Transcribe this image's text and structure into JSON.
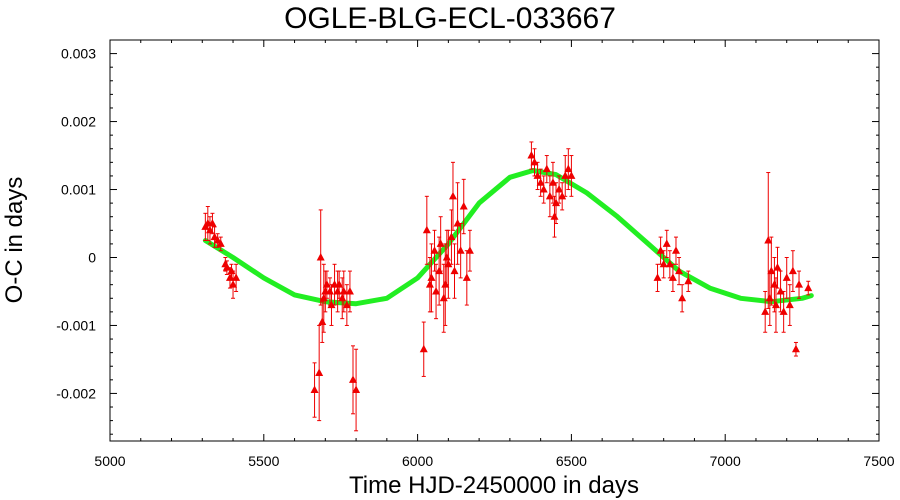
{
  "chart_data": {
    "type": "scatter",
    "title": "OGLE-BLG-ECL-033667",
    "xlabel": "Time HJD-2450000 in days",
    "ylabel": "O-C in days",
    "xlim": [
      5000,
      7500
    ],
    "ylim": [
      -0.0027,
      0.0032
    ],
    "xticks": [
      5000,
      5500,
      6000,
      6500,
      7000,
      7500
    ],
    "xtick_labels": [
      "5000",
      "5500",
      "6000",
      "6500",
      "7000",
      "7500"
    ],
    "yticks": [
      -0.002,
      -0.001,
      0,
      0.001,
      0.002,
      0.003
    ],
    "ytick_labels": [
      "-0.002",
      "-0.001",
      "0",
      "0.001",
      "0.002",
      "0.003"
    ],
    "grid": false,
    "colors": {
      "points": "#ee0000",
      "fit": "#22ee22",
      "axes": "#000000"
    },
    "series": [
      {
        "kind": "points_with_errorbars",
        "points": [
          {
            "x": 5310,
            "y": 0.00045,
            "err": 0.0002
          },
          {
            "x": 5318,
            "y": 0.0005,
            "err": 0.00025
          },
          {
            "x": 5325,
            "y": 0.0004,
            "err": 0.0002
          },
          {
            "x": 5333,
            "y": 0.0005,
            "err": 0.00015
          },
          {
            "x": 5340,
            "y": 0.0003,
            "err": 0.00015
          },
          {
            "x": 5350,
            "y": 0.00025,
            "err": 0.0001
          },
          {
            "x": 5360,
            "y": 0.0002,
            "err": 0.0001
          },
          {
            "x": 5375,
            "y": -0.0001,
            "err": 0.0001
          },
          {
            "x": 5380,
            "y": -0.00015,
            "err": 0.0001
          },
          {
            "x": 5390,
            "y": -0.0003,
            "err": 0.00015
          },
          {
            "x": 5395,
            "y": -0.0002,
            "err": 0.0001
          },
          {
            "x": 5400,
            "y": -0.0004,
            "err": 0.0002
          },
          {
            "x": 5410,
            "y": -0.0003,
            "err": 0.0002
          },
          {
            "x": 5665,
            "y": -0.00195,
            "err": 0.0004
          },
          {
            "x": 5680,
            "y": -0.0017,
            "err": 0.0007
          },
          {
            "x": 5685,
            "y": 0.0,
            "err": 0.0007
          },
          {
            "x": 5690,
            "y": -0.00095,
            "err": 0.0003
          },
          {
            "x": 5695,
            "y": -0.0006,
            "err": 0.0005
          },
          {
            "x": 5700,
            "y": -0.0005,
            "err": 0.0003
          },
          {
            "x": 5705,
            "y": -0.0004,
            "err": 0.0002
          },
          {
            "x": 5715,
            "y": -0.0005,
            "err": 0.0002
          },
          {
            "x": 5720,
            "y": -0.0007,
            "err": 0.0003
          },
          {
            "x": 5730,
            "y": -0.0004,
            "err": 0.0003
          },
          {
            "x": 5740,
            "y": -0.0005,
            "err": 0.0003
          },
          {
            "x": 5745,
            "y": -0.0004,
            "err": 0.0002
          },
          {
            "x": 5755,
            "y": -0.0006,
            "err": 0.0003
          },
          {
            "x": 5760,
            "y": -0.0005,
            "err": 0.0003
          },
          {
            "x": 5770,
            "y": -0.0007,
            "err": 0.0003
          },
          {
            "x": 5780,
            "y": -0.0005,
            "err": 0.0003
          },
          {
            "x": 5790,
            "y": -0.0018,
            "err": 0.0005
          },
          {
            "x": 5800,
            "y": -0.00195,
            "err": 0.0006
          },
          {
            "x": 6020,
            "y": -0.00135,
            "err": 0.0004
          },
          {
            "x": 6030,
            "y": 0.0004,
            "err": 0.0005
          },
          {
            "x": 6040,
            "y": -0.0004,
            "err": 0.0004
          },
          {
            "x": 6045,
            "y": -0.0003,
            "err": 0.0005
          },
          {
            "x": 6055,
            "y": 0.0001,
            "err": 0.0003
          },
          {
            "x": 6060,
            "y": -0.0005,
            "err": 0.0004
          },
          {
            "x": 6070,
            "y": -0.0002,
            "err": 0.0005
          },
          {
            "x": 6075,
            "y": 0.0002,
            "err": 0.0004
          },
          {
            "x": 6085,
            "y": -0.0006,
            "err": 0.0005
          },
          {
            "x": 6090,
            "y": -0.0004,
            "err": 0.0006
          },
          {
            "x": 6095,
            "y": 0.0,
            "err": 0.0004
          },
          {
            "x": 6100,
            "y": -0.0001,
            "err": 0.0005
          },
          {
            "x": 6110,
            "y": 0.0003,
            "err": 0.0004
          },
          {
            "x": 6115,
            "y": 0.0009,
            "err": 0.0005
          },
          {
            "x": 6120,
            "y": -0.0002,
            "err": 0.0004
          },
          {
            "x": 6130,
            "y": 0.0005,
            "err": 0.0006
          },
          {
            "x": 6140,
            "y": 0.0001,
            "err": 0.0004
          },
          {
            "x": 6150,
            "y": 0.00075,
            "err": 0.0004
          },
          {
            "x": 6160,
            "y": -0.0003,
            "err": 0.0004
          },
          {
            "x": 6170,
            "y": 0.0001,
            "err": 0.0003
          },
          {
            "x": 6370,
            "y": 0.0015,
            "err": 0.0002
          },
          {
            "x": 6380,
            "y": 0.0014,
            "err": 0.0002
          },
          {
            "x": 6390,
            "y": 0.0012,
            "err": 0.0002
          },
          {
            "x": 6400,
            "y": 0.0011,
            "err": 0.0002
          },
          {
            "x": 6410,
            "y": 0.001,
            "err": 0.0002
          },
          {
            "x": 6420,
            "y": 0.0013,
            "err": 0.0002
          },
          {
            "x": 6430,
            "y": 0.0009,
            "err": 0.0003
          },
          {
            "x": 6440,
            "y": 0.0011,
            "err": 0.0003
          },
          {
            "x": 6445,
            "y": 0.0006,
            "err": 0.0003
          },
          {
            "x": 6450,
            "y": 0.0008,
            "err": 0.0003
          },
          {
            "x": 6460,
            "y": 0.001,
            "err": 0.0002
          },
          {
            "x": 6470,
            "y": 0.0009,
            "err": 0.0002
          },
          {
            "x": 6480,
            "y": 0.0012,
            "err": 0.0003
          },
          {
            "x": 6490,
            "y": 0.0013,
            "err": 0.0003
          },
          {
            "x": 6500,
            "y": 0.0012,
            "err": 0.0003
          },
          {
            "x": 6780,
            "y": -0.0003,
            "err": 0.0002
          },
          {
            "x": 6790,
            "y": 0.0001,
            "err": 0.0002
          },
          {
            "x": 6800,
            "y": -0.0001,
            "err": 0.0002
          },
          {
            "x": 6810,
            "y": 0.0002,
            "err": 0.0002
          },
          {
            "x": 6820,
            "y": -0.0001,
            "err": 0.0002
          },
          {
            "x": 6830,
            "y": -0.0003,
            "err": 0.0002
          },
          {
            "x": 6840,
            "y": 0.0001,
            "err": 0.0002
          },
          {
            "x": 6850,
            "y": -0.0002,
            "err": 0.0002
          },
          {
            "x": 6860,
            "y": -0.0006,
            "err": 0.0002
          },
          {
            "x": 6880,
            "y": -0.00035,
            "err": 0.00015
          },
          {
            "x": 7130,
            "y": -0.0008,
            "err": 0.0003
          },
          {
            "x": 7140,
            "y": 0.00025,
            "err": 0.001
          },
          {
            "x": 7145,
            "y": -0.0006,
            "err": 0.0004
          },
          {
            "x": 7150,
            "y": -0.0002,
            "err": 0.0005
          },
          {
            "x": 7160,
            "y": -0.0004,
            "err": 0.0004
          },
          {
            "x": 7165,
            "y": -0.0007,
            "err": 0.0004
          },
          {
            "x": 7170,
            "y": -0.00015,
            "err": 0.0003
          },
          {
            "x": 7180,
            "y": -0.0005,
            "err": 0.0003
          },
          {
            "x": 7190,
            "y": -0.0008,
            "err": 0.0003
          },
          {
            "x": 7200,
            "y": -0.0003,
            "err": 0.0003
          },
          {
            "x": 7210,
            "y": -0.0007,
            "err": 0.0003
          },
          {
            "x": 7220,
            "y": -0.0002,
            "err": 0.0003
          },
          {
            "x": 7230,
            "y": -0.00135,
            "err": 0.0001
          },
          {
            "x": 7240,
            "y": -0.0004,
            "err": 0.0002
          },
          {
            "x": 7270,
            "y": -0.00045,
            "err": 0.0001
          }
        ]
      },
      {
        "kind": "fit_curve",
        "points": [
          {
            "x": 5310,
            "y": 0.00025
          },
          {
            "x": 5400,
            "y": 0.0
          },
          {
            "x": 5500,
            "y": -0.0003
          },
          {
            "x": 5600,
            "y": -0.00055
          },
          {
            "x": 5700,
            "y": -0.00065
          },
          {
            "x": 5800,
            "y": -0.00068
          },
          {
            "x": 5900,
            "y": -0.0006
          },
          {
            "x": 6000,
            "y": -0.0003
          },
          {
            "x": 6100,
            "y": 0.0002
          },
          {
            "x": 6200,
            "y": 0.0008
          },
          {
            "x": 6300,
            "y": 0.00118
          },
          {
            "x": 6375,
            "y": 0.00128
          },
          {
            "x": 6450,
            "y": 0.00122
          },
          {
            "x": 6550,
            "y": 0.00095
          },
          {
            "x": 6650,
            "y": 0.0006
          },
          {
            "x": 6750,
            "y": 0.0002
          },
          {
            "x": 6850,
            "y": -0.0002
          },
          {
            "x": 6950,
            "y": -0.00045
          },
          {
            "x": 7050,
            "y": -0.0006
          },
          {
            "x": 7150,
            "y": -0.00065
          },
          {
            "x": 7250,
            "y": -0.0006
          },
          {
            "x": 7280,
            "y": -0.00056
          }
        ]
      }
    ]
  }
}
